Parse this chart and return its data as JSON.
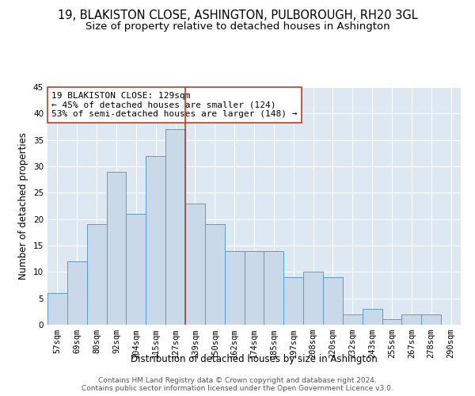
{
  "title1": "19, BLAKISTON CLOSE, ASHINGTON, PULBOROUGH, RH20 3GL",
  "title2": "Size of property relative to detached houses in Ashington",
  "xlabel": "Distribution of detached houses by size in Ashington",
  "ylabel": "Number of detached properties",
  "bar_labels": [
    "57sqm",
    "69sqm",
    "80sqm",
    "92sqm",
    "104sqm",
    "115sqm",
    "127sqm",
    "139sqm",
    "150sqm",
    "162sqm",
    "174sqm",
    "185sqm",
    "197sqm",
    "208sqm",
    "220sqm",
    "232sqm",
    "243sqm",
    "255sqm",
    "267sqm",
    "278sqm",
    "290sqm"
  ],
  "bar_heights": [
    6,
    12,
    19,
    29,
    21,
    32,
    37,
    23,
    19,
    14,
    14,
    14,
    9,
    10,
    9,
    2,
    3,
    1,
    2,
    2,
    0
  ],
  "bar_color": "#c9d9ea",
  "bar_edge_color": "#5b9bd5",
  "vline_x_idx": 6.5,
  "vline_color": "#c0392b",
  "annotation_text": "19 BLAKISTON CLOSE: 129sqm\n← 45% of detached houses are smaller (124)\n53% of semi-detached houses are larger (148) →",
  "annotation_box_color": "#ffffff",
  "annotation_box_edge": "#c0392b",
  "ylim": [
    0,
    45
  ],
  "yticks": [
    0,
    5,
    10,
    15,
    20,
    25,
    30,
    35,
    40,
    45
  ],
  "background_color": "#dde8f3",
  "footer_line1": "Contains HM Land Registry data © Crown copyright and database right 2024.",
  "footer_line2": "Contains public sector information licensed under the Open Government Licence v3.0.",
  "title1_fontsize": 10.5,
  "title2_fontsize": 9.5,
  "xlabel_fontsize": 8.5,
  "ylabel_fontsize": 8.5,
  "tick_fontsize": 7.5,
  "annotation_fontsize": 8,
  "footer_fontsize": 6.5
}
